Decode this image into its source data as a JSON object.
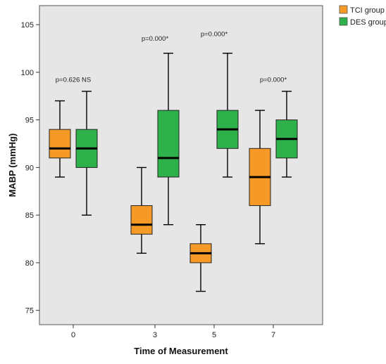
{
  "chart_data": {
    "type": "boxplot",
    "xlabel": "Time of Measurement",
    "ylabel": "MABP (mmHg)",
    "categories": [
      "0",
      "3",
      "5",
      "7"
    ],
    "ylim": [
      73.5,
      107
    ],
    "yticks": [
      75,
      80,
      85,
      90,
      95,
      100,
      105
    ],
    "grid": false,
    "legend_position": "right-outside-top",
    "background": "#e6e6e6",
    "series": [
      {
        "name": "TCI group",
        "color": "#f59a27",
        "boxes": [
          {
            "min": 89,
            "q1": 91,
            "median": 92,
            "q3": 94,
            "max": 97
          },
          {
            "min": 81,
            "q1": 83,
            "median": 84,
            "q3": 86,
            "max": 90
          },
          {
            "min": 77,
            "q1": 80,
            "median": 81,
            "q3": 82,
            "max": 84
          },
          {
            "min": 82,
            "q1": 86,
            "median": 89,
            "q3": 92,
            "max": 96
          }
        ]
      },
      {
        "name": "DES group",
        "color": "#2eb04a",
        "boxes": [
          {
            "min": 85,
            "q1": 90,
            "median": 92,
            "q3": 94,
            "max": 98
          },
          {
            "min": 84,
            "q1": 89,
            "median": 91,
            "q3": 96,
            "max": 102
          },
          {
            "min": 89,
            "q1": 92,
            "median": 94,
            "q3": 96,
            "max": 102
          },
          {
            "min": 89,
            "q1": 91,
            "median": 93,
            "q3": 95,
            "max": 98
          }
        ]
      }
    ],
    "annotations": [
      {
        "category": "0",
        "text": "p=0.626 NS",
        "y": 99
      },
      {
        "category": "3",
        "text": "p=0.000*",
        "y": 103.3
      },
      {
        "category": "5",
        "text": "p=0.000*",
        "y": 103.8
      },
      {
        "category": "7",
        "text": "p=0.000*",
        "y": 99
      }
    ]
  }
}
